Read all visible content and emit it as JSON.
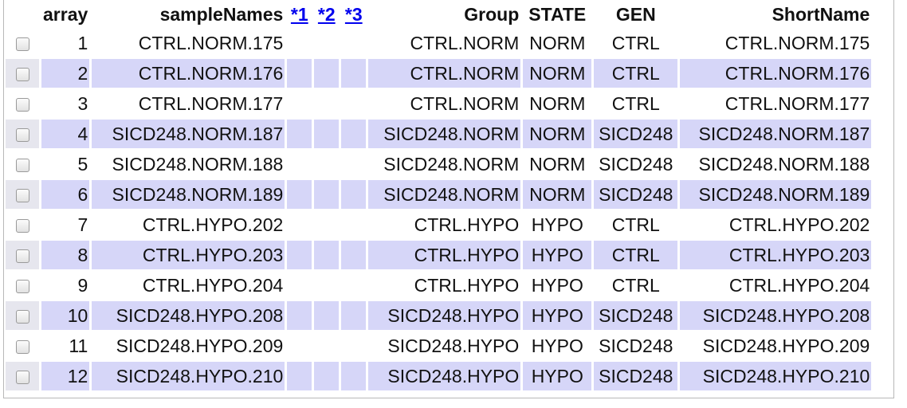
{
  "headers": {
    "array": "array",
    "sampleNames": "sampleNames",
    "link1": "*1",
    "link2": "*2",
    "link3": "*3",
    "group": "Group",
    "state": "STATE",
    "gen": "GEN",
    "shortName": "ShortName"
  },
  "rows": [
    {
      "array": "1",
      "sampleNames": "CTRL.NORM.175",
      "group": "CTRL.NORM",
      "state": "NORM",
      "gen": "CTRL",
      "shortName": "CTRL.NORM.175"
    },
    {
      "array": "2",
      "sampleNames": "CTRL.NORM.176",
      "group": "CTRL.NORM",
      "state": "NORM",
      "gen": "CTRL",
      "shortName": "CTRL.NORM.176"
    },
    {
      "array": "3",
      "sampleNames": "CTRL.NORM.177",
      "group": "CTRL.NORM",
      "state": "NORM",
      "gen": "CTRL",
      "shortName": "CTRL.NORM.177"
    },
    {
      "array": "4",
      "sampleNames": "SICD248.NORM.187",
      "group": "SICD248.NORM",
      "state": "NORM",
      "gen": "SICD248",
      "shortName": "SICD248.NORM.187"
    },
    {
      "array": "5",
      "sampleNames": "SICD248.NORM.188",
      "group": "SICD248.NORM",
      "state": "NORM",
      "gen": "SICD248",
      "shortName": "SICD248.NORM.188"
    },
    {
      "array": "6",
      "sampleNames": "SICD248.NORM.189",
      "group": "SICD248.NORM",
      "state": "NORM",
      "gen": "SICD248",
      "shortName": "SICD248.NORM.189"
    },
    {
      "array": "7",
      "sampleNames": "CTRL.HYPO.202",
      "group": "CTRL.HYPO",
      "state": "HYPO",
      "gen": "CTRL",
      "shortName": "CTRL.HYPO.202"
    },
    {
      "array": "8",
      "sampleNames": "CTRL.HYPO.203",
      "group": "CTRL.HYPO",
      "state": "HYPO",
      "gen": "CTRL",
      "shortName": "CTRL.HYPO.203"
    },
    {
      "array": "9",
      "sampleNames": "CTRL.HYPO.204",
      "group": "CTRL.HYPO",
      "state": "HYPO",
      "gen": "CTRL",
      "shortName": "CTRL.HYPO.204"
    },
    {
      "array": "10",
      "sampleNames": "SICD248.HYPO.208",
      "group": "SICD248.HYPO",
      "state": "HYPO",
      "gen": "SICD248",
      "shortName": "SICD248.HYPO.208"
    },
    {
      "array": "11",
      "sampleNames": "SICD248.HYPO.209",
      "group": "SICD248.HYPO",
      "state": "HYPO",
      "gen": "SICD248",
      "shortName": "SICD248.HYPO.209"
    },
    {
      "array": "12",
      "sampleNames": "SICD248.HYPO.210",
      "group": "SICD248.HYPO",
      "state": "HYPO",
      "gen": "SICD248",
      "shortName": "SICD248.HYPO.210"
    }
  ]
}
